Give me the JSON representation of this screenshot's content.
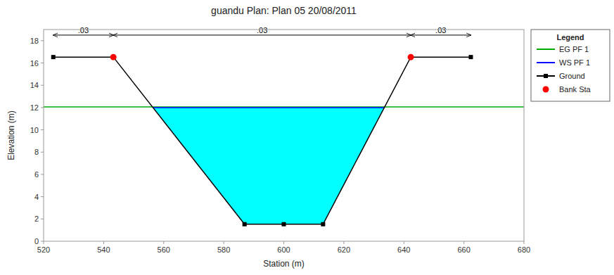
{
  "chart_data": {
    "type": "line",
    "title": "guandu      Plan: Plan 05   20/08/2011",
    "x_label": "Station (m)",
    "y_label": "Elevation (m)",
    "xlim": [
      520,
      680
    ],
    "ylim": [
      0,
      19
    ],
    "xticks": [
      520,
      540,
      560,
      580,
      600,
      620,
      640,
      660,
      680
    ],
    "yticks": [
      0,
      2,
      4,
      6,
      8,
      10,
      12,
      14,
      16,
      18
    ],
    "grid": false,
    "legend": "right",
    "legend_title": "Legend",
    "series": [
      {
        "type": "area",
        "color": "#00FFFF",
        "x": [
          556.417477,
          586.9195,
          600,
          613.0805,
          633.478008
        ],
        "values": [
          12.0,
          1.529,
          1.529,
          1.529,
          12.0
        ]
      },
      {
        "name": "EG PF 1",
        "type": "hline",
        "color": "#00AA00",
        "values": [
          12.05
        ]
      },
      {
        "name": "WS PF 1",
        "type": "line",
        "color": "#0000FF",
        "x": [
          556.417477,
          633.478008
        ],
        "values": [
          12.0,
          12.0
        ]
      },
      {
        "name": "Ground",
        "type": "line",
        "color": "#000000",
        "marker": "square",
        "x": [
          523.2245,
          543.2245,
          586.9195,
          600,
          613.0805,
          642.3005,
          662.3005
        ],
        "values": [
          16.529,
          16.529,
          1.529,
          1.529,
          1.529,
          16.529,
          16.529
        ]
      },
      {
        "name": "Bank Sta",
        "type": "scatter",
        "color": "#FF0000",
        "marker": "circle",
        "x": [
          543.2245,
          642.3005
        ],
        "values": [
          16.529,
          16.529
        ]
      }
    ],
    "annotations": [
      {
        "text": ".03",
        "x": [
          523.2245,
          543.2245
        ],
        "y": 18.5
      },
      {
        "text": ".03",
        "x": [
          543.2245,
          642.3005
        ],
        "y": 18.5
      },
      {
        "text": ".03",
        "x": [
          642.3005,
          662.3005
        ],
        "y": 18.5
      }
    ]
  }
}
